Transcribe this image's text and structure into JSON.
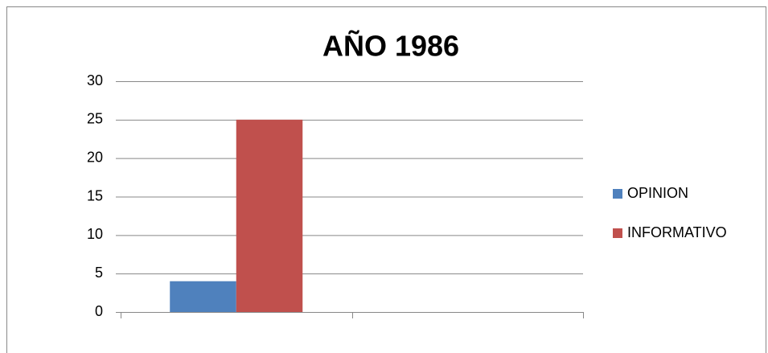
{
  "chart_data": {
    "type": "bar",
    "title": "AÑO 1986",
    "categories": [
      null,
      null
    ],
    "series": [
      {
        "name": "OPINION",
        "color": "#4f81bd",
        "values": [
          4,
          null
        ]
      },
      {
        "name": "INFORMATIVO",
        "color": "#c0504d",
        "values": [
          25,
          null
        ]
      }
    ],
    "ylim": [
      0,
      30
    ],
    "yticks": [
      0,
      5,
      10,
      15,
      20,
      25,
      30
    ],
    "grid": true,
    "legend": "right"
  }
}
